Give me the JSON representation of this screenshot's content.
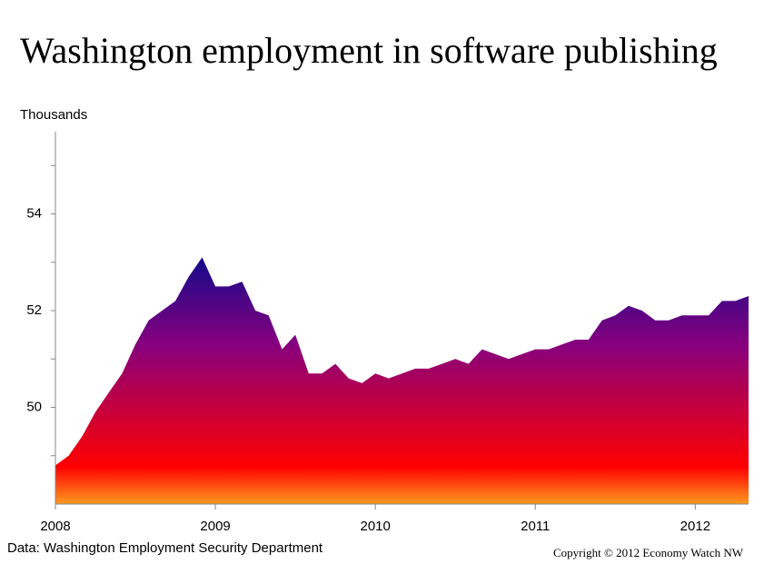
{
  "chart_data": {
    "type": "area",
    "title": "Washington employment in software publishing",
    "y_label": "Thousands",
    "source": "Data: Washington Employment Security Department",
    "copyright": "Copyright  ©  2012  Economy Watch NW",
    "x": [
      2008,
      2008.083,
      2008.167,
      2008.25,
      2008.333,
      2008.417,
      2008.5,
      2008.583,
      2008.667,
      2008.75,
      2008.833,
      2008.917,
      2009,
      2009.083,
      2009.167,
      2009.25,
      2009.333,
      2009.417,
      2009.5,
      2009.583,
      2009.667,
      2009.75,
      2009.833,
      2009.917,
      2010,
      2010.083,
      2010.167,
      2010.25,
      2010.333,
      2010.417,
      2010.5,
      2010.583,
      2010.667,
      2010.75,
      2010.833,
      2010.917,
      2011,
      2011.083,
      2011.167,
      2011.25,
      2011.333,
      2011.417,
      2011.5,
      2011.583,
      2011.667,
      2011.75,
      2011.833,
      2011.917,
      2012,
      2012.083,
      2012.167,
      2012.25,
      2012.333
    ],
    "values": [
      48.8,
      49.0,
      49.4,
      49.9,
      50.3,
      50.7,
      51.3,
      51.8,
      52.0,
      52.2,
      52.7,
      53.1,
      52.5,
      52.5,
      52.6,
      52.0,
      51.9,
      51.2,
      51.5,
      50.7,
      50.7,
      50.9,
      50.6,
      50.5,
      50.7,
      50.6,
      50.7,
      50.8,
      50.8,
      50.9,
      51.0,
      50.9,
      51.2,
      51.1,
      51.0,
      51.1,
      51.2,
      51.2,
      51.3,
      51.4,
      51.4,
      51.8,
      51.9,
      52.1,
      52.0,
      51.8,
      51.8,
      51.9,
      51.9,
      51.9,
      52.2,
      52.2,
      52.3
    ],
    "gradient": [
      "#140a8a",
      "#86007f",
      "#ff0000",
      "#ff9a20"
    ],
    "xlim": [
      2008,
      2012.333
    ],
    "xticks": [
      2008,
      2009,
      2010,
      2011,
      2012
    ],
    "ylim": [
      48,
      55.7
    ],
    "yticks": [
      50,
      52,
      54
    ],
    "yminor": [
      49,
      51,
      53,
      55
    ]
  }
}
